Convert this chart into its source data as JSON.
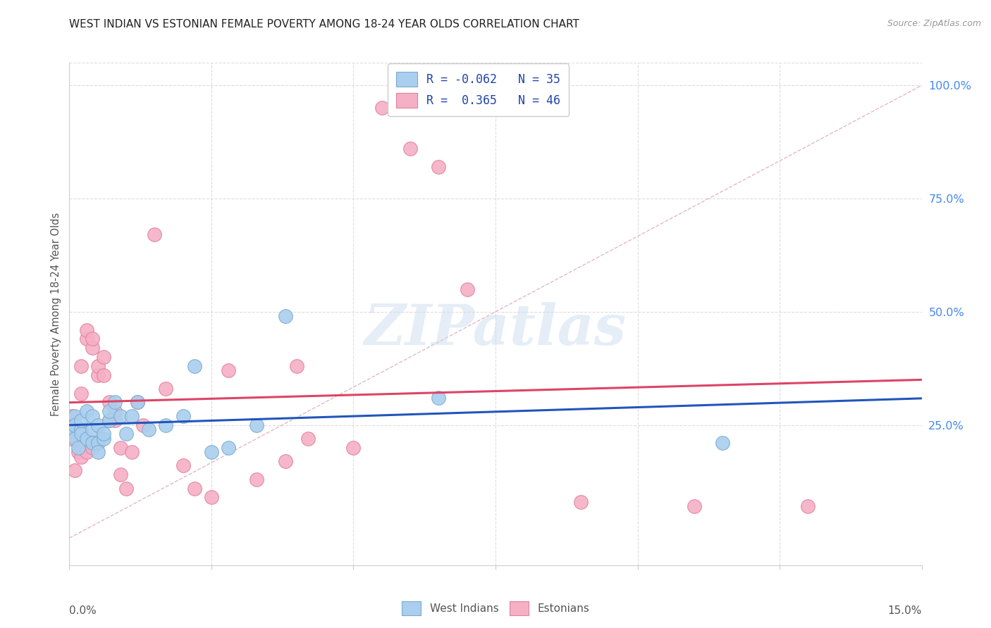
{
  "title": "WEST INDIAN VS ESTONIAN FEMALE POVERTY AMONG 18-24 YEAR OLDS CORRELATION CHART",
  "source": "Source: ZipAtlas.com",
  "ylabel": "Female Poverty Among 18-24 Year Olds",
  "ylabel_right_ticks": [
    "100.0%",
    "75.0%",
    "50.0%",
    "25.0%"
  ],
  "ylabel_right_vals": [
    1.0,
    0.75,
    0.5,
    0.25
  ],
  "watermark": "ZIPatlas",
  "west_indians_x": [
    0.0005,
    0.001,
    0.001,
    0.001,
    0.0015,
    0.002,
    0.002,
    0.002,
    0.003,
    0.003,
    0.004,
    0.004,
    0.004,
    0.005,
    0.005,
    0.005,
    0.006,
    0.006,
    0.007,
    0.007,
    0.008,
    0.009,
    0.01,
    0.011,
    0.012,
    0.014,
    0.017,
    0.02,
    0.022,
    0.025,
    0.028,
    0.033,
    0.038,
    0.065,
    0.115
  ],
  "west_indians_y": [
    0.24,
    0.27,
    0.25,
    0.22,
    0.2,
    0.24,
    0.23,
    0.26,
    0.28,
    0.22,
    0.24,
    0.27,
    0.21,
    0.21,
    0.25,
    0.19,
    0.22,
    0.23,
    0.26,
    0.28,
    0.3,
    0.27,
    0.23,
    0.27,
    0.3,
    0.24,
    0.25,
    0.27,
    0.38,
    0.19,
    0.2,
    0.25,
    0.49,
    0.31,
    0.21
  ],
  "estonians_x": [
    0.0003,
    0.0005,
    0.001,
    0.001,
    0.0015,
    0.002,
    0.002,
    0.002,
    0.003,
    0.003,
    0.003,
    0.004,
    0.004,
    0.004,
    0.005,
    0.005,
    0.006,
    0.006,
    0.007,
    0.007,
    0.008,
    0.008,
    0.009,
    0.009,
    0.01,
    0.011,
    0.012,
    0.013,
    0.015,
    0.017,
    0.02,
    0.022,
    0.025,
    0.028,
    0.033,
    0.038,
    0.04,
    0.042,
    0.05,
    0.055,
    0.06,
    0.065,
    0.07,
    0.09,
    0.11,
    0.13
  ],
  "estonians_y": [
    0.22,
    0.27,
    0.15,
    0.25,
    0.19,
    0.18,
    0.32,
    0.38,
    0.44,
    0.46,
    0.19,
    0.42,
    0.44,
    0.2,
    0.36,
    0.38,
    0.36,
    0.4,
    0.26,
    0.3,
    0.26,
    0.28,
    0.2,
    0.14,
    0.11,
    0.19,
    0.3,
    0.25,
    0.67,
    0.33,
    0.16,
    0.11,
    0.09,
    0.37,
    0.13,
    0.17,
    0.38,
    0.22,
    0.2,
    0.95,
    0.86,
    0.82,
    0.55,
    0.08,
    0.07,
    0.07
  ],
  "wi_color": "#aacfee",
  "wi_edge": "#7aaad0",
  "est_color": "#f5b0c5",
  "est_edge": "#e080a0",
  "wi_line_color": "#2255bb",
  "est_line_color": "#dd4466",
  "diag_line_color": "#e0b0c0",
  "xmin": 0.0,
  "xmax": 0.15,
  "ymin": -0.06,
  "ymax": 1.05,
  "legend_r1": "R = -0.062",
  "legend_n1": "N = 35",
  "legend_r2": "R =  0.365",
  "legend_n2": "N = 46",
  "right_label_color": "#4488ee",
  "grid_color": "#dddddd",
  "spine_color": "#cccccc",
  "title_color": "#222222",
  "source_color": "#999999",
  "ylabel_color": "#555555"
}
